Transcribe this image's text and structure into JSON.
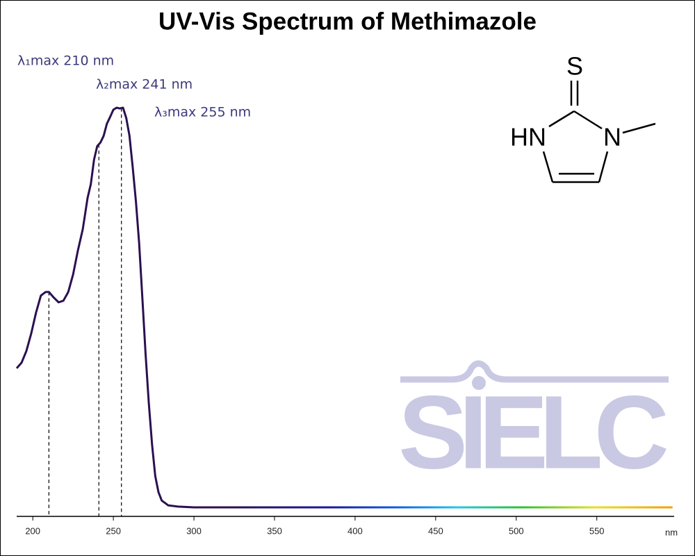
{
  "chart_data": {
    "type": "line",
    "title": "UV-Vis Spectrum of Methimazole",
    "x_label": "nm",
    "x": [
      190,
      193,
      196,
      199,
      202,
      205,
      208,
      210,
      213,
      216,
      219,
      222,
      225,
      228,
      231,
      234,
      236,
      238,
      240,
      242,
      244,
      246,
      248,
      250,
      252,
      254,
      256,
      258,
      260,
      262,
      264,
      266,
      268,
      270,
      272,
      274,
      276,
      278,
      280,
      284,
      290,
      300,
      597
    ],
    "values": [
      0.348,
      0.362,
      0.391,
      0.435,
      0.487,
      0.53,
      0.539,
      0.539,
      0.525,
      0.513,
      0.517,
      0.539,
      0.583,
      0.643,
      0.696,
      0.774,
      0.809,
      0.87,
      0.904,
      0.913,
      0.93,
      0.96,
      0.977,
      0.995,
      1.0,
      0.998,
      1.0,
      0.974,
      0.93,
      0.852,
      0.765,
      0.661,
      0.522,
      0.383,
      0.261,
      0.157,
      0.078,
      0.038,
      0.017,
      0.005,
      0.002,
      0,
      0
    ],
    "color": "#2a1050",
    "xlim": [
      190,
      598
    ],
    "xticks": [
      200,
      250,
      300,
      350,
      400,
      450,
      500,
      550
    ],
    "ylim": [
      0,
      1
    ],
    "annotations": [
      {
        "text": "λ₁max  210 nm",
        "x": 210
      },
      {
        "text": "λ₂max  241 nm",
        "x": 241
      },
      {
        "text": "λ₃max  255 nm",
        "x": 255
      }
    ]
  },
  "structure_labels": [
    "S",
    "HN",
    "N"
  ],
  "watermark": "SIELC"
}
